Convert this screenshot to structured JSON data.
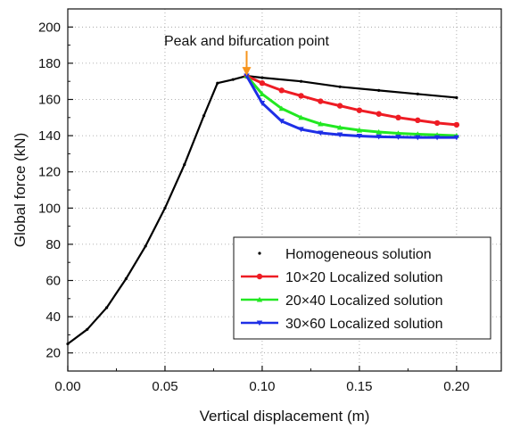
{
  "chart_data": {
    "type": "line",
    "xlabel": "Vertical displacement (m)",
    "ylabel": "Global force (kN)",
    "xlim": [
      0.0,
      0.223
    ],
    "ylim": [
      10,
      210
    ],
    "xticks": [
      "0.00",
      "0.05",
      "0.10",
      "0.15",
      "0.20"
    ],
    "xtick_values": [
      0.0,
      0.05,
      0.1,
      0.15,
      0.2
    ],
    "yticks": [
      "20",
      "40",
      "60",
      "80",
      "100",
      "120",
      "140",
      "160",
      "180",
      "200"
    ],
    "ytick_values": [
      20,
      40,
      60,
      80,
      100,
      120,
      140,
      160,
      180,
      200
    ],
    "grid": true,
    "legend_position": "lower-right",
    "annotation": {
      "text": "Peak and bifurcation point",
      "x": 0.092,
      "y": 173,
      "arrow_color": "#f7941d"
    },
    "series": [
      {
        "name": "Homogeneous solution",
        "color": "#000000",
        "marker": "dot",
        "x": [
          0.0,
          0.01,
          0.02,
          0.03,
          0.04,
          0.05,
          0.06,
          0.07,
          0.077,
          0.085,
          0.092,
          0.1,
          0.12,
          0.14,
          0.16,
          0.18,
          0.2
        ],
        "y": [
          25,
          33,
          45,
          61,
          79,
          100,
          124,
          151,
          169,
          171,
          173,
          172,
          170,
          167,
          165,
          163,
          161
        ]
      },
      {
        "name": "10×20 Localized solution",
        "color": "#ee1c24",
        "marker": "circle",
        "x": [
          0.092,
          0.1,
          0.11,
          0.12,
          0.13,
          0.14,
          0.15,
          0.16,
          0.17,
          0.18,
          0.19,
          0.2
        ],
        "y": [
          173,
          169,
          165,
          162,
          159,
          156.5,
          154,
          152,
          150,
          148.5,
          147,
          146
        ]
      },
      {
        "name": "20×40 Localized solution",
        "color": "#22e822",
        "marker": "triangle-up",
        "x": [
          0.092,
          0.1,
          0.11,
          0.12,
          0.13,
          0.14,
          0.15,
          0.16,
          0.17,
          0.18,
          0.19,
          0.2
        ],
        "y": [
          173,
          163,
          155,
          150,
          146.5,
          144.5,
          143,
          142,
          141.3,
          140.8,
          140.4,
          140
        ]
      },
      {
        "name": "30×60 Localized solution",
        "color": "#1e2fe6",
        "marker": "triangle-down",
        "x": [
          0.092,
          0.1,
          0.11,
          0.12,
          0.13,
          0.14,
          0.15,
          0.16,
          0.17,
          0.18,
          0.19,
          0.2
        ],
        "y": [
          173,
          158,
          148,
          143.5,
          141.5,
          140.5,
          139.8,
          139.4,
          139.2,
          139,
          139,
          139
        ]
      }
    ]
  }
}
